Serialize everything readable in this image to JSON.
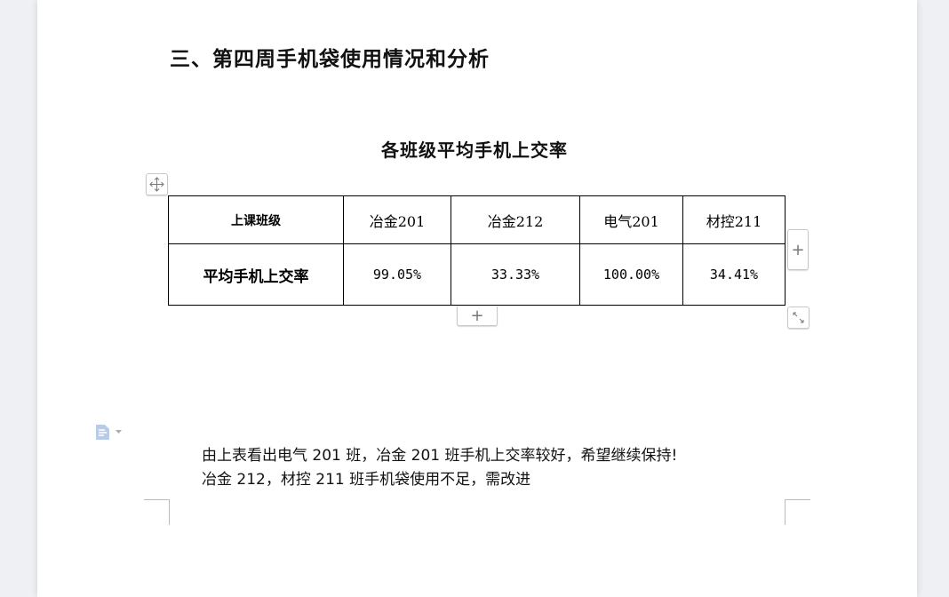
{
  "heading": "三、第四周手机袋使用情况和分析",
  "table_title": "各班级平均手机上交率",
  "table": {
    "headers": [
      "上课班级",
      "冶金201",
      "冶金212",
      "电气201",
      "材控211"
    ],
    "row": [
      "平均手机上交率",
      "99.05%",
      "33.33%",
      "100.00%",
      "34.41%"
    ]
  },
  "paragraph": [
    "由上表看出电气 201 班，冶金 201 班手机上交率较好，希望继续保持!",
    "冶金 212，材控 211 班手机袋使用不足，需改进"
  ],
  "icons": {
    "move": "move-icon",
    "add": "plus-icon",
    "resize": "resize-icon",
    "doc": "document-icon"
  }
}
